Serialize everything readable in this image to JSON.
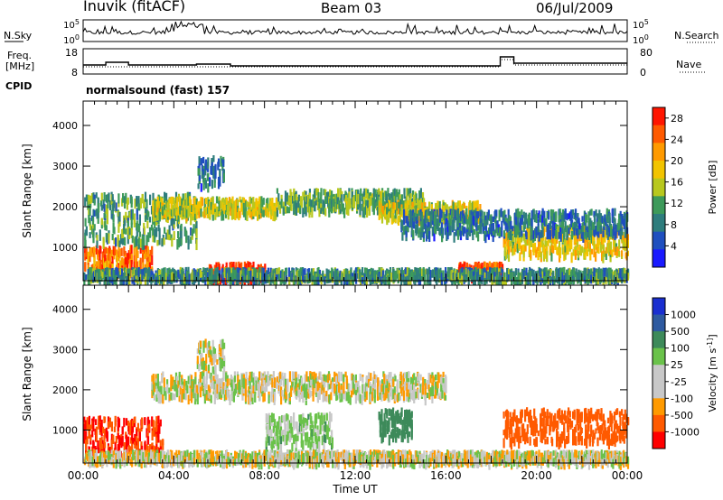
{
  "header": {
    "station": "Inuvik (fitACF)",
    "beam": "Beam 03",
    "date": "06/Jul/2009"
  },
  "colors": {
    "power_scale": [
      "#1a1aff",
      "#1f4fbf",
      "#2e7d7d",
      "#3d9a5a",
      "#b8c81e",
      "#f2c400",
      "#ff9a00",
      "#ff5a00",
      "#ff1500"
    ],
    "velocity_scale": [
      "#ff0000",
      "#ff5a00",
      "#ff9a00",
      "#c8c8c8",
      "#c8c8c8",
      "#6ac24a",
      "#3d8a5a",
      "#2e5aa0",
      "#1a2fd0"
    ]
  },
  "strip_panels": {
    "nsky": {
      "label": "N.Sky",
      "right_label": "N.Search",
      "left_ticks": [
        "10^5",
        "10^0"
      ],
      "right_ticks": [
        "10^5",
        "10^0"
      ]
    },
    "freq": {
      "label_line1": "Freq.",
      "label_line2": "[MHz]",
      "right_label": "Nave",
      "left_ticks": [
        18,
        8
      ],
      "right_ticks": [
        80,
        0
      ]
    },
    "cpid": {
      "label": "CPID",
      "program": "normalsound (fast) 157"
    }
  },
  "chart_data": [
    {
      "type": "heatmap",
      "name": "power",
      "ylabel": "Slant Range [km]",
      "ylim": [
        180,
        4600
      ],
      "yticks": [
        1000,
        2000,
        3000,
        4000
      ],
      "colorbar_label": "Power [dB]",
      "colorbar_ticks": [
        4,
        8,
        12,
        16,
        20,
        24,
        28
      ],
      "colorbar_range": [
        0,
        30
      ],
      "xlim": [
        0,
        24
      ],
      "bands": [
        {
          "start": 0.0,
          "end": 3.0,
          "range": [
            400,
            1000
          ],
          "level": 24
        },
        {
          "start": 0.0,
          "end": 5.0,
          "range": [
            1100,
            2300
          ],
          "level": 11
        },
        {
          "start": 5.5,
          "end": 8.0,
          "range": [
            200,
            600
          ],
          "level": 28
        },
        {
          "start": 3.0,
          "end": 8.5,
          "range": [
            1800,
            2200
          ],
          "level": 16
        },
        {
          "start": 8.5,
          "end": 15.0,
          "range": [
            1900,
            2400
          ],
          "level": 12
        },
        {
          "start": 13.0,
          "end": 17.5,
          "range": [
            1700,
            2100
          ],
          "level": 17
        },
        {
          "start": 16.5,
          "end": 18.5,
          "range": [
            300,
            600
          ],
          "level": 26
        },
        {
          "start": 18.5,
          "end": 24.0,
          "range": [
            800,
            1500
          ],
          "level": 18
        },
        {
          "start": 0.0,
          "end": 24.0,
          "range": [
            200,
            450
          ],
          "level": 10
        },
        {
          "start": 14.0,
          "end": 24.0,
          "range": [
            1300,
            1900
          ],
          "level": 8
        },
        {
          "start": 5.0,
          "end": 6.2,
          "range": [
            2500,
            3200
          ],
          "level": 8
        }
      ]
    },
    {
      "type": "heatmap",
      "name": "velocity",
      "ylabel": "Slant Range [km]",
      "ylim": [
        180,
        4600
      ],
      "yticks": [
        1000,
        2000,
        3000,
        4000
      ],
      "xlabel": "Time UT",
      "xlim": [
        0,
        24
      ],
      "xticks": [
        "00:00",
        "04:00",
        "08:00",
        "12:00",
        "16:00",
        "20:00",
        "00:00"
      ],
      "colorbar_label": "Velocity [m s^-1]",
      "colorbar_ticks": [
        1000,
        500,
        100,
        25,
        -25,
        -100,
        -500,
        -1000
      ],
      "bands": [
        {
          "start": 0.0,
          "end": 3.5,
          "range": [
            400,
            1300
          ],
          "level": -500
        },
        {
          "start": 3.0,
          "end": 16.0,
          "range": [
            1800,
            2400
          ],
          "level": 0
        },
        {
          "start": 8.0,
          "end": 11.0,
          "range": [
            600,
            1400
          ],
          "level": 50
        },
        {
          "start": 13.0,
          "end": 14.5,
          "range": [
            800,
            1500
          ],
          "level": 200
        },
        {
          "start": 18.5,
          "end": 24.0,
          "range": [
            700,
            1500
          ],
          "level": -300
        },
        {
          "start": 0.0,
          "end": 24.0,
          "range": [
            200,
            450
          ],
          "level": 0
        },
        {
          "start": 5.0,
          "end": 6.2,
          "range": [
            2500,
            3200
          ],
          "level": 0
        }
      ]
    }
  ]
}
